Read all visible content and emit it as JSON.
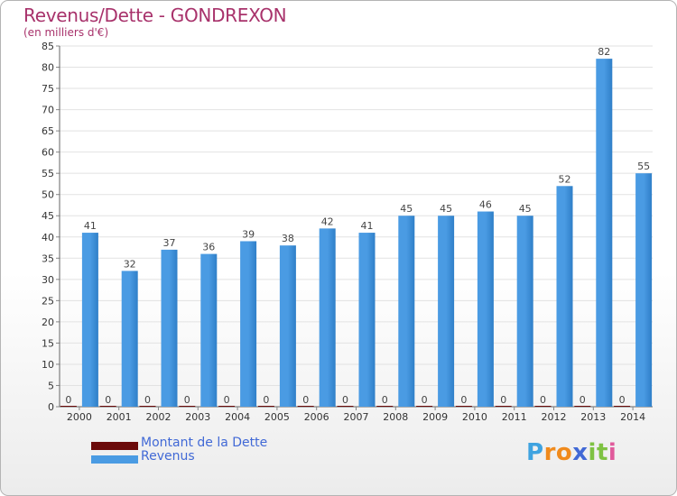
{
  "header": {
    "title": "Revenus/Dette - GONDREXON",
    "subtitle": "(en milliers d'€)"
  },
  "legend": {
    "items": [
      {
        "label": "Montant de la Dette",
        "color": "#6b0a0a"
      },
      {
        "label": "Revenus",
        "color": "#4a9be3"
      }
    ]
  },
  "logo": {
    "letters": [
      {
        "ch": "P",
        "color": "#3fa3e0"
      },
      {
        "ch": "r",
        "color": "#f08a1c"
      },
      {
        "ch": "o",
        "color": "#f08a1c"
      },
      {
        "ch": "x",
        "color": "#4169d6"
      },
      {
        "ch": "i",
        "color": "#7ec242"
      },
      {
        "ch": "t",
        "color": "#7ec242"
      },
      {
        "ch": "i",
        "color": "#e05a9b"
      }
    ]
  },
  "chart_data": {
    "type": "bar",
    "title": "Revenus/Dette - GONDREXON",
    "subtitle": "(en milliers d'€)",
    "categories": [
      "2000",
      "2001",
      "2002",
      "2003",
      "2004",
      "2005",
      "2006",
      "2007",
      "2008",
      "2009",
      "2010",
      "2011",
      "2012",
      "2013",
      "2014"
    ],
    "series": [
      {
        "name": "Montant de la Dette",
        "color": "#6b0a0a",
        "values": [
          0,
          0,
          0,
          0,
          0,
          0,
          0,
          0,
          0,
          0,
          0,
          0,
          0,
          0,
          0
        ]
      },
      {
        "name": "Revenus",
        "color": "#4a9be3",
        "values": [
          41,
          32,
          37,
          36,
          39,
          38,
          42,
          41,
          45,
          45,
          46,
          45,
          52,
          82,
          55
        ]
      }
    ],
    "ylim": [
      0,
      85
    ],
    "yticks": [
      0,
      5,
      10,
      15,
      20,
      25,
      30,
      35,
      40,
      45,
      50,
      55,
      60,
      65,
      70,
      75,
      80,
      85
    ],
    "grid": true,
    "legend_position": "bottom-left"
  }
}
